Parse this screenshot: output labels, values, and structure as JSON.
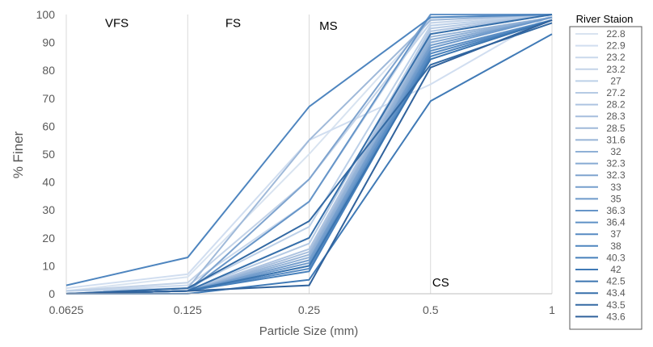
{
  "chart_data": {
    "type": "line",
    "xlabel": "Particle Size (mm)",
    "ylabel": "% Finer",
    "x": [
      0.0625,
      0.125,
      0.25,
      0.5,
      1
    ],
    "x_tick_labels": [
      "0.0625",
      "0.125",
      "0.25",
      "0.5",
      "1"
    ],
    "x_scale": "log2",
    "ylim": [
      0,
      100
    ],
    "y_ticks": [
      0,
      10,
      20,
      30,
      40,
      50,
      60,
      70,
      80,
      90,
      100
    ],
    "grid": "vertical",
    "legend_title": "River Staion",
    "legend_position": "right",
    "zone_labels": [
      {
        "text": "VFS",
        "x": 0.078,
        "y": 97
      },
      {
        "text": "FS",
        "x": 0.155,
        "y": 97
      },
      {
        "text": "MS",
        "x": 0.265,
        "y": 96
      },
      {
        "text": "CS",
        "x": 0.505,
        "y": 4
      }
    ],
    "series": [
      {
        "name": "22.8",
        "color": "#d8e3f0",
        "values": [
          1,
          6,
          50,
          98,
          100
        ]
      },
      {
        "name": "22.9",
        "color": "#d1def0",
        "values": [
          2,
          7,
          55,
          75,
          100
        ]
      },
      {
        "name": "23.2",
        "color": "#c9d8ec",
        "values": [
          1,
          3,
          33,
          99,
          100
        ]
      },
      {
        "name": "23.2",
        "color": "#c3d3e8",
        "values": [
          1,
          4,
          41,
          97,
          100
        ]
      },
      {
        "name": "27",
        "color": "#bcd0e8",
        "values": [
          1,
          2,
          24,
          96,
          100
        ]
      },
      {
        "name": "27.2",
        "color": "#b5cae4",
        "values": [
          0,
          1,
          18,
          95,
          100
        ]
      },
      {
        "name": "28.2",
        "color": "#aec4e1",
        "values": [
          0,
          1,
          16,
          94,
          100
        ]
      },
      {
        "name": "28.3",
        "color": "#a6bedd",
        "values": [
          0,
          1,
          15,
          93,
          100
        ]
      },
      {
        "name": "28.5",
        "color": "#9fb9d9",
        "values": [
          0,
          2,
          55,
          98,
          100
        ]
      },
      {
        "name": "31.6",
        "color": "#97b4d7",
        "values": [
          0,
          1,
          14,
          92,
          99
        ]
      },
      {
        "name": "32",
        "color": "#8fb0d6",
        "values": [
          0,
          1,
          13,
          91,
          99
        ]
      },
      {
        "name": "32.3",
        "color": "#87aad3",
        "values": [
          0,
          1,
          12,
          90,
          99
        ]
      },
      {
        "name": "32.3",
        "color": "#7fa4cf",
        "values": [
          0,
          1,
          41,
          100,
          100
        ]
      },
      {
        "name": "33",
        "color": "#769fcd",
        "values": [
          0,
          1,
          12,
          89,
          99
        ]
      },
      {
        "name": "35",
        "color": "#6e9acb",
        "values": [
          0,
          1,
          11,
          88,
          99
        ]
      },
      {
        "name": "36.3",
        "color": "#6695c8",
        "values": [
          0,
          1,
          33,
          100,
          100
        ]
      },
      {
        "name": "36.4",
        "color": "#5e90c5",
        "values": [
          0,
          1,
          10,
          87,
          98
        ]
      },
      {
        "name": "37",
        "color": "#568ac2",
        "values": [
          0,
          1,
          9,
          86,
          98
        ]
      },
      {
        "name": "38",
        "color": "#4e85bf",
        "values": [
          3,
          13,
          67,
          99,
          100
        ]
      },
      {
        "name": "40.3",
        "color": "#4780bb",
        "values": [
          0,
          1,
          8,
          85,
          98
        ]
      },
      {
        "name": "42",
        "color": "#407ab6",
        "values": [
          0,
          0,
          5,
          69,
          93
        ]
      },
      {
        "name": "42.5",
        "color": "#3b75b0",
        "values": [
          0,
          1,
          10,
          84,
          98
        ]
      },
      {
        "name": "43.4",
        "color": "#366faa",
        "values": [
          0,
          1,
          20,
          93,
          100
        ]
      },
      {
        "name": "43.5",
        "color": "#3369a3",
        "values": [
          0,
          2,
          26,
          82,
          97
        ]
      },
      {
        "name": "43.6",
        "color": "#30629c",
        "values": [
          0,
          1,
          3,
          81,
          98
        ]
      }
    ]
  }
}
